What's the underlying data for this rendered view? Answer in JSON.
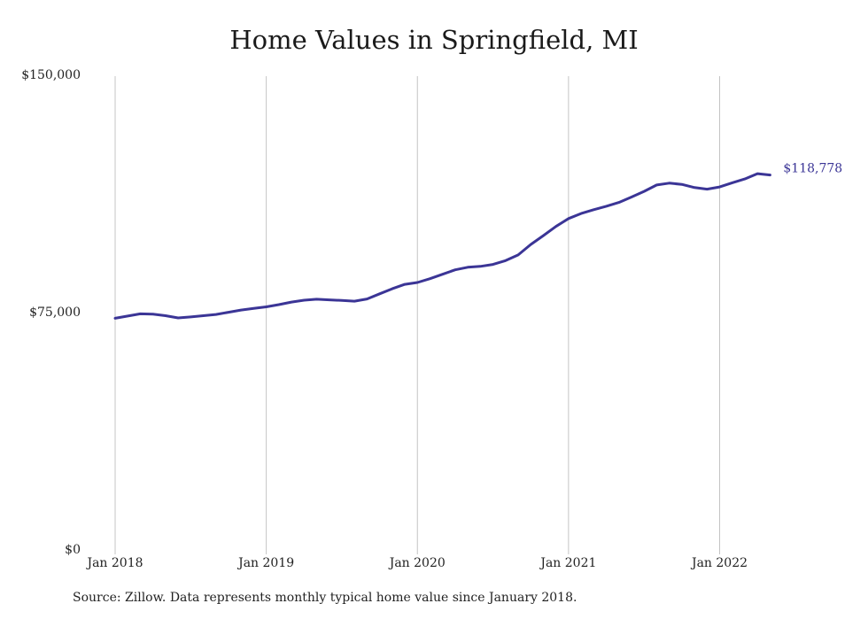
{
  "chart_data": {
    "type": "line",
    "title": "Home Values in Springfield, MI",
    "xlabel": "",
    "ylabel": "",
    "ylim": [
      0,
      150000
    ],
    "yticks": [
      {
        "value": 0,
        "label": "$0"
      },
      {
        "value": 75000,
        "label": "$75,000"
      },
      {
        "value": 150000,
        "label": "$150,000"
      }
    ],
    "xticks": [
      {
        "month": 0,
        "label": "Jan 2018"
      },
      {
        "month": 12,
        "label": "Jan 2019"
      },
      {
        "month": 24,
        "label": "Jan 2020"
      },
      {
        "month": 36,
        "label": "Jan 2021"
      },
      {
        "month": 48,
        "label": "Jan 2022"
      }
    ],
    "grid": {
      "vertical": true,
      "horizontal": false
    },
    "series": [
      {
        "color": "#3b3596",
        "end_label": "$118,778",
        "x": [
          "2018-01",
          "2018-02",
          "2018-03",
          "2018-04",
          "2018-05",
          "2018-06",
          "2018-07",
          "2018-08",
          "2018-09",
          "2018-10",
          "2018-11",
          "2018-12",
          "2019-01",
          "2019-02",
          "2019-03",
          "2019-04",
          "2019-05",
          "2019-06",
          "2019-07",
          "2019-08",
          "2019-09",
          "2019-10",
          "2019-11",
          "2019-12",
          "2020-01",
          "2020-02",
          "2020-03",
          "2020-04",
          "2020-05",
          "2020-06",
          "2020-07",
          "2020-08",
          "2020-09",
          "2020-10",
          "2020-11",
          "2020-12",
          "2021-01",
          "2021-02",
          "2021-03",
          "2021-04",
          "2021-05",
          "2021-06",
          "2021-07",
          "2021-08",
          "2021-09",
          "2021-10",
          "2021-11",
          "2021-12",
          "2022-01",
          "2022-02",
          "2022-03",
          "2022-04",
          "2022-05"
        ],
        "values": [
          73500,
          74200,
          74900,
          74800,
          74300,
          73600,
          73900,
          74300,
          74700,
          75400,
          76100,
          76600,
          77100,
          77800,
          78600,
          79200,
          79500,
          79300,
          79100,
          78900,
          79600,
          81200,
          82800,
          84200,
          84800,
          86000,
          87400,
          88800,
          89600,
          89900,
          90500,
          91700,
          93500,
          96800,
          99600,
          102500,
          105000,
          106600,
          107800,
          108900,
          110100,
          111800,
          113600,
          115600,
          116200,
          115800,
          114800,
          114300,
          115000,
          116300,
          117500,
          119200,
          118778
        ]
      }
    ]
  }
}
